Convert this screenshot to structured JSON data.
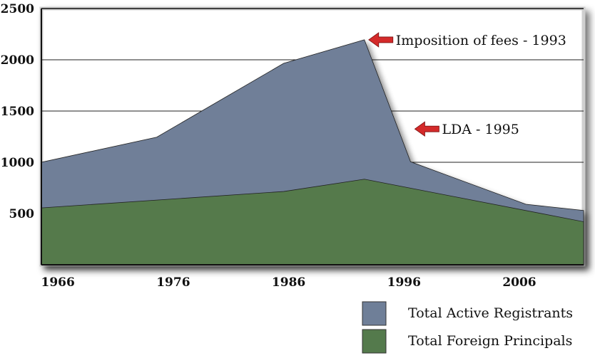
{
  "chart_data": {
    "type": "area",
    "title": "",
    "xlabel": "",
    "ylabel": "",
    "xlim": [
      1965,
      2012
    ],
    "ylim": [
      0,
      2500
    ],
    "x_ticks": [
      1966,
      1976,
      1986,
      1996,
      2006
    ],
    "y_ticks": [
      500,
      1000,
      1500,
      2000,
      2500
    ],
    "grid": "horizontal",
    "legend_position": "bottom-right",
    "series": [
      {
        "name": "Total Active Registrants",
        "color": "#6f7f98",
        "x": [
          1965,
          1975,
          1986,
          1993,
          1997,
          2007,
          2012
        ],
        "values": [
          1000,
          1245,
          1965,
          2195,
          1005,
          590,
          530
        ]
      },
      {
        "name": "Total Foreign Principals",
        "color": "#547a4c",
        "x": [
          1965,
          1986,
          1993,
          2012
        ],
        "values": [
          555,
          715,
          835,
          420
        ]
      }
    ],
    "annotations": [
      {
        "text": "Imposition of fees - 1993",
        "x": 1993,
        "y": 2195
      },
      {
        "text": "LDA - 1995",
        "x": 1997,
        "y": 1325
      }
    ]
  },
  "colors": {
    "arrow": "#d42a2a",
    "grid": "#222222",
    "frame": "#111111"
  }
}
